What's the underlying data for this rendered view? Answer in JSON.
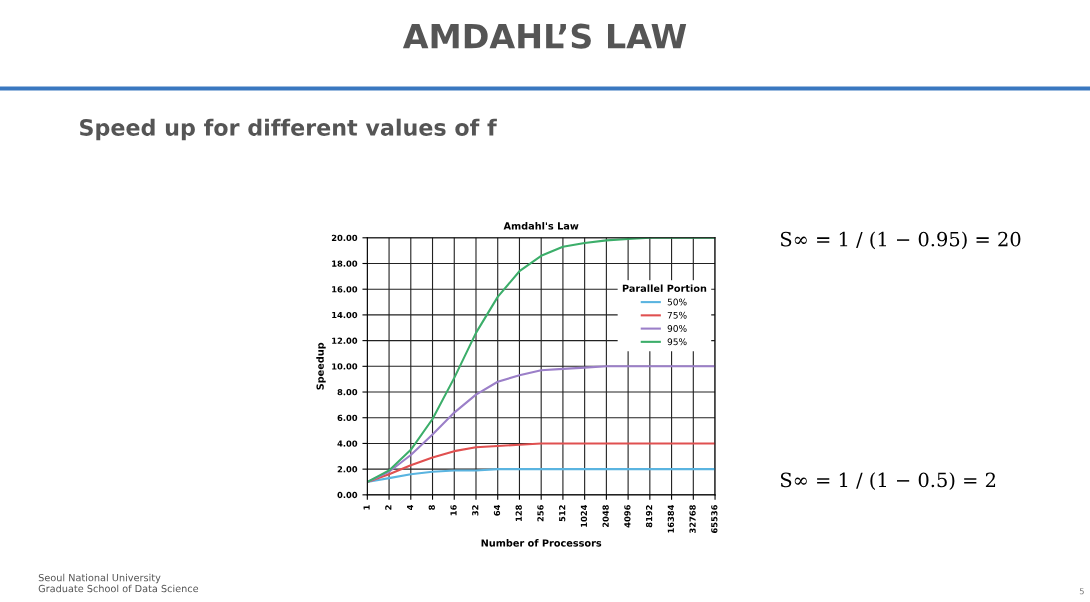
{
  "chart_data": {
    "type": "line",
    "title": "AMDAHL’S LAW",
    "subtitle": "Speed up for different values of f",
    "annotations": [
      "Amdahl's Law",
      "S∞ = 1 / (1 − 0.95) = 20",
      "S∞ = 1 / (1 − 0.5) = 2",
      "Seoul National University\nGraduate School of Data Science",
      "5"
    ],
    "xlabel": "Number of Processors",
    "ylabel": "Speedup",
    "legend_title": "Parallel Portion",
    "categories": [
      "1",
      "2",
      "4",
      "8",
      "16",
      "32",
      "64",
      "128",
      "256",
      "512",
      "1024",
      "2048",
      "4096",
      "8192",
      "16384",
      "32768",
      "65536"
    ],
    "series": [
      {
        "name": "50%",
        "color": "#5ab4e0",
        "values": [
          1.0,
          1.3,
          1.6,
          1.8,
          1.9,
          1.9,
          2.0,
          2.0,
          2.0,
          2.0,
          2.0,
          2.0,
          2.0,
          2.0,
          2.0,
          2.0,
          2.0
        ]
      },
      {
        "name": "75%",
        "color": "#e05050",
        "values": [
          1.0,
          1.6,
          2.3,
          2.9,
          3.4,
          3.7,
          3.8,
          3.9,
          4.0,
          4.0,
          4.0,
          4.0,
          4.0,
          4.0,
          4.0,
          4.0,
          4.0
        ]
      },
      {
        "name": "90%",
        "color": "#9b7fc8",
        "values": [
          1.0,
          1.8,
          3.1,
          4.7,
          6.4,
          7.8,
          8.8,
          9.3,
          9.7,
          9.8,
          9.9,
          10.0,
          10.0,
          10.0,
          10.0,
          10.0,
          10.0
        ]
      },
      {
        "name": "95%",
        "color": "#3cae6a",
        "values": [
          1.0,
          1.9,
          3.5,
          5.9,
          9.1,
          12.6,
          15.4,
          17.4,
          18.6,
          19.3,
          19.6,
          19.8,
          19.9,
          20.0,
          20.0,
          20.0,
          20.0
        ]
      }
    ],
    "ylim": [
      0,
      20
    ],
    "yticks": [
      {
        "value": 0,
        "label": "0.00"
      },
      {
        "value": 2,
        "label": "2.00"
      },
      {
        "value": 4,
        "label": "4.00"
      },
      {
        "value": 6,
        "label": "6.00"
      },
      {
        "value": 8,
        "label": "8.00"
      },
      {
        "value": 10,
        "label": "10.00"
      },
      {
        "value": 12,
        "label": "12.00"
      },
      {
        "value": 14,
        "label": "14.00"
      },
      {
        "value": 16,
        "label": "16.00"
      },
      {
        "value": 18,
        "label": "18.00"
      },
      {
        "value": 20,
        "label": "20.00"
      }
    ],
    "grid": true,
    "legend": "top right",
    "marker": "none",
    "line_style": "solid"
  }
}
